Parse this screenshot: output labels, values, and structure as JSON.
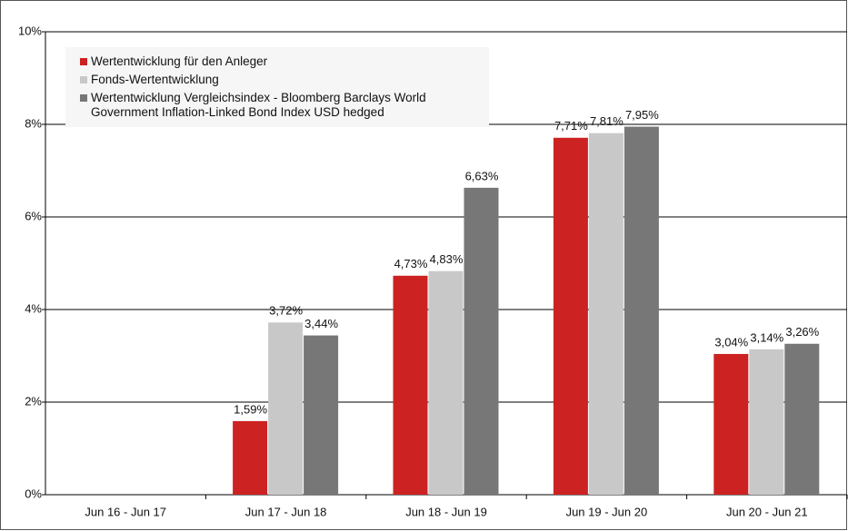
{
  "chart_data": {
    "type": "bar",
    "categories": [
      "Jun 16 - Jun 17",
      "Jun 17 - Jun 18",
      "Jun 18 - Jun 19",
      "Jun 19 - Jun 20",
      "Jun 20 - Jun 21"
    ],
    "series": [
      {
        "name": "Wertentwicklung für den Anleger",
        "color": "#cc2222",
        "values": [
          null,
          1.59,
          4.73,
          7.71,
          3.04
        ],
        "value_labels": [
          null,
          "1,59%",
          "4,73%",
          "7,71%",
          "3,04%"
        ]
      },
      {
        "name": "Fonds-Wertentwicklung",
        "color": "#c8c8c8",
        "values": [
          null,
          3.72,
          4.83,
          7.81,
          3.14
        ],
        "value_labels": [
          null,
          "3,72%",
          "4,83%",
          "7,81%",
          "3,14%"
        ]
      },
      {
        "name": "Wertentwicklung Vergleichsindex - Bloomberg Barclays World Government Inflation-Linked Bond Index USD hedged",
        "color": "#777777",
        "values": [
          null,
          3.44,
          6.63,
          7.95,
          3.26
        ],
        "value_labels": [
          null,
          "3,44%",
          "6,63%",
          "7,95%",
          "3,26%"
        ]
      }
    ],
    "ylim": [
      0,
      10
    ],
    "yticks": [
      {
        "value": 0,
        "label": "0%"
      },
      {
        "value": 2,
        "label": "2%"
      },
      {
        "value": 4,
        "label": "4%"
      },
      {
        "value": 6,
        "label": "6%"
      },
      {
        "value": 8,
        "label": "8%"
      },
      {
        "value": 10,
        "label": "10%"
      }
    ],
    "grid": true,
    "legend": "upper left"
  }
}
